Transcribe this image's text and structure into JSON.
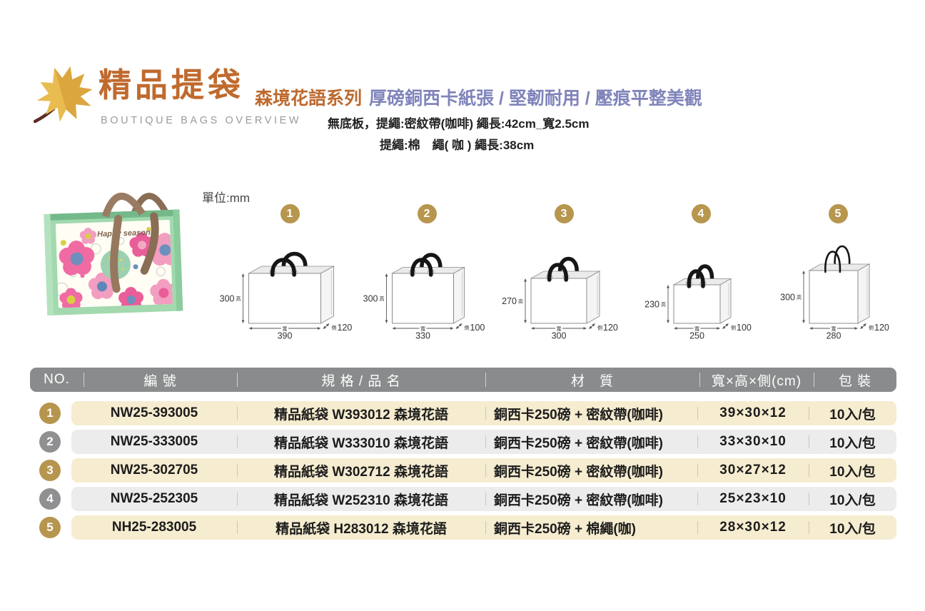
{
  "header": {
    "title": "精品提袋",
    "subtitle": "BOUTIQUE BAGS OVERVIEW",
    "series": "森境花語系列",
    "tagline": "厚磅銅西卡紙張 / 堅韌耐用 / 壓痕平整美觀",
    "note_line1": "無底板，提繩:密紋帶(咖啡) 繩長:42cm_寬2.5cm",
    "note_line2": "提繩:棉　繩( 咖 ) 繩長:38cm"
  },
  "photo": {
    "brand_text": "Happy season"
  },
  "diagrams": {
    "unit_label": "單位:mm",
    "dim_chars": {
      "height": "高",
      "width": "寬",
      "side": "側"
    },
    "items": [
      {
        "no": "1",
        "width_mm": "390",
        "height_mm": "300",
        "side_mm": "120",
        "handle": "ribbon"
      },
      {
        "no": "2",
        "width_mm": "330",
        "height_mm": "300",
        "side_mm": "100",
        "handle": "ribbon"
      },
      {
        "no": "3",
        "width_mm": "300",
        "height_mm": "270",
        "side_mm": "120",
        "handle": "ribbon"
      },
      {
        "no": "4",
        "width_mm": "250",
        "height_mm": "230",
        "side_mm": "100",
        "handle": "ribbon"
      },
      {
        "no": "5",
        "width_mm": "280",
        "height_mm": "300",
        "side_mm": "120",
        "handle": "rope"
      }
    ]
  },
  "table": {
    "headers": {
      "no": "NO.",
      "code": "編 號",
      "name": "規 格 / 品 名",
      "material": "材　質",
      "dims": "寬×高×側(cm)",
      "pack": "包 裝"
    },
    "rows": [
      {
        "no": "1",
        "code": "NW25-393005",
        "name": "精品紙袋 W393012 森境花語",
        "material": "銅西卡250磅 + 密紋帶(咖啡)",
        "dims": "39×30×12",
        "pack": "10入/包",
        "tone": "gold"
      },
      {
        "no": "2",
        "code": "NW25-333005",
        "name": "精品紙袋 W333010 森境花語",
        "material": "銅西卡250磅 + 密紋帶(咖啡)",
        "dims": "33×30×10",
        "pack": "10入/包",
        "tone": "gray"
      },
      {
        "no": "3",
        "code": "NW25-302705",
        "name": "精品紙袋 W302712 森境花語",
        "material": "銅西卡250磅 + 密紋帶(咖啡)",
        "dims": "30×27×12",
        "pack": "10入/包",
        "tone": "gold"
      },
      {
        "no": "4",
        "code": "NW25-252305",
        "name": "精品紙袋 W252310 森境花語",
        "material": "銅西卡250磅 + 密紋帶(咖啡)",
        "dims": "25×23×10",
        "pack": "10入/包",
        "tone": "gray"
      },
      {
        "no": "5",
        "code": "NH25-283005",
        "name": "精品紙袋 H283012 森境花語",
        "material": "銅西卡250磅 + 棉繩(咖)",
        "dims": "28×30×12",
        "pack": "10入/包",
        "tone": "gold"
      }
    ]
  },
  "colors": {
    "accent_orange": "#C06A2E",
    "accent_purple": "#8084BB",
    "badge_gold": "#B6954E",
    "badge_gray": "#8F9092",
    "header_bar_gray": "#8A8B8C",
    "row_beige": "#F6ECD0",
    "row_gray": "#ECECEC"
  }
}
